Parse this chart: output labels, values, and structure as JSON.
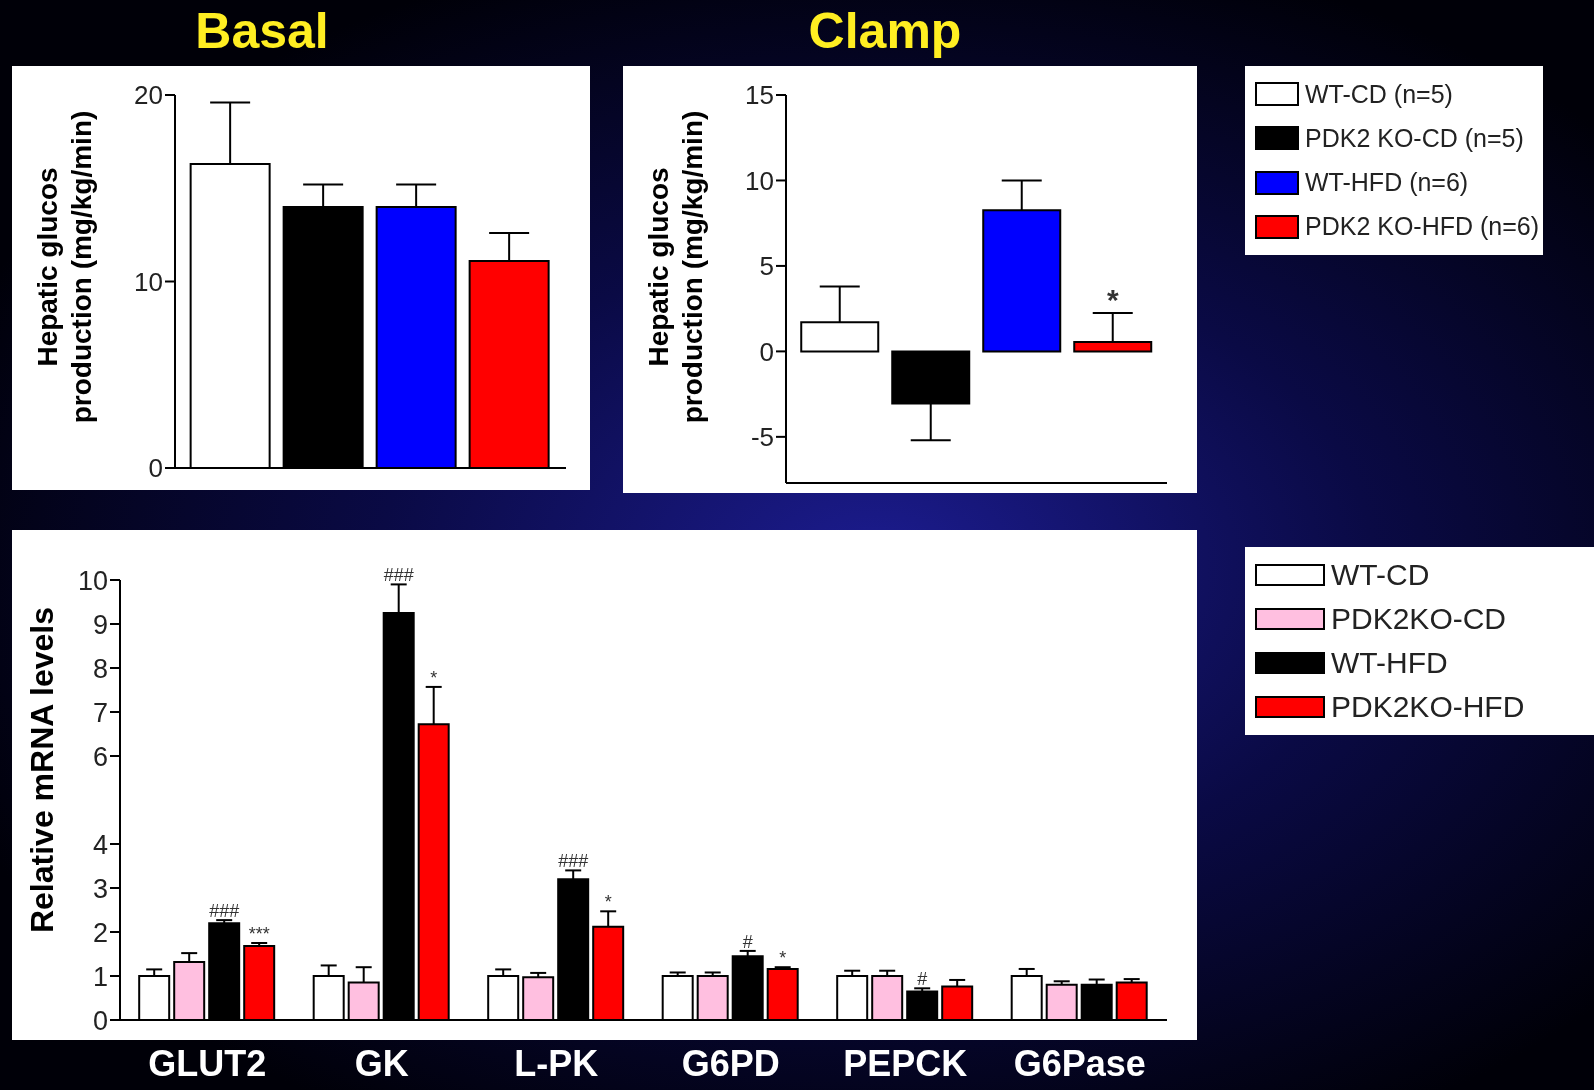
{
  "chart_data": [
    {
      "type": "bar",
      "title": "Basal",
      "ylabel": "Hepatic glucos production (mg/kg/min)",
      "categories": [
        null
      ],
      "ylim": [
        0,
        20
      ],
      "yticks": [
        0,
        10,
        20
      ],
      "series": [
        {
          "color": "#ffffff",
          "values": [
            16.3
          ],
          "errors": [
            3.3
          ]
        },
        {
          "color": "#000000",
          "values": [
            14.0
          ],
          "errors": [
            1.2
          ]
        },
        {
          "color": "#0000ff",
          "values": [
            14.0
          ],
          "errors": [
            1.2
          ]
        },
        {
          "color": "#ff0000",
          "values": [
            11.1
          ],
          "errors": [
            1.5
          ]
        }
      ]
    },
    {
      "type": "bar",
      "title": "Clamp",
      "ylabel": "Hepatic glucos production (mg/kg/min)",
      "categories": [
        null
      ],
      "ylim": [
        -7.7,
        15
      ],
      "yticks": [
        -5,
        0,
        5,
        10,
        15
      ],
      "legend": "right",
      "annotations": [
        {
          "text": "*",
          "y": 2.25
        }
      ],
      "series": [
        {
          "name": "WT-CD (n=5)",
          "color": "#ffffff",
          "values": [
            1.7
          ],
          "errors": [
            2.1
          ]
        },
        {
          "name": "PDK2 KO-CD (n=5)",
          "color": "#000000",
          "values": [
            -3.05
          ],
          "errors": [
            2.15
          ]
        },
        {
          "name": "WT-HFD (n=6)",
          "color": "#0000ff",
          "values": [
            8.25
          ],
          "errors": [
            1.75
          ]
        },
        {
          "name": "PDK2 KO-HFD (n=6)",
          "color": "#ff0000",
          "values": [
            0.55
          ],
          "errors": [
            1.7
          ]
        }
      ]
    },
    {
      "type": "bar",
      "ylabel": "Relative mRNA levels",
      "categories": [
        "GLUT2",
        "GK",
        "L-PK",
        "G6PD",
        "PEPCK",
        "G6Pase"
      ],
      "ylim": [
        0,
        10
      ],
      "yticks": [
        0,
        1,
        2,
        3,
        4,
        6,
        7,
        8,
        9,
        10
      ],
      "legend": "right",
      "annotations": [
        {
          "text": "###",
          "x": "GLUT2",
          "y": 2.27
        },
        {
          "text": "***",
          "x": "GLUT2",
          "y": 1.75
        },
        {
          "text": "###",
          "x": "GK",
          "y": 9.25
        },
        {
          "text": "*",
          "x": "GK",
          "y": 7.57
        },
        {
          "text": "###",
          "x": "L-PK",
          "y": 3.2
        },
        {
          "text": "*",
          "x": "L-PK",
          "y": 2.47
        },
        {
          "text": "#",
          "x": "G6PD",
          "y": 1.45
        },
        {
          "text": "*",
          "x": "G6PD",
          "y": 1.2
        },
        {
          "text": "#",
          "x": "PEPCK",
          "y": 0.72
        }
      ],
      "series": [
        {
          "name": "WT-CD",
          "color": "#ffffff",
          "values": [
            1.0,
            1.0,
            1.0,
            1.0,
            1.0,
            1.0
          ],
          "errors": [
            0.15,
            0.24,
            0.15,
            0.08,
            0.12,
            0.16
          ]
        },
        {
          "name": "PDK2KO-CD",
          "color": "#ffbfe0",
          "values": [
            1.32,
            0.85,
            0.97,
            1.0,
            1.0,
            0.8
          ],
          "errors": [
            0.2,
            0.35,
            0.1,
            0.08,
            0.12,
            0.08
          ]
        },
        {
          "name": "WT-HFD",
          "color": "#000000",
          "values": [
            2.2,
            9.25,
            3.2,
            1.45,
            0.65,
            0.8
          ],
          "errors": [
            0.07,
            0.65,
            0.2,
            0.12,
            0.07,
            0.12
          ]
        },
        {
          "name": "PDK2KO-HFD",
          "color": "#ff0000",
          "values": [
            1.68,
            6.72,
            2.12,
            1.16,
            0.76,
            0.85
          ],
          "errors": [
            0.07,
            0.85,
            0.35,
            0.04,
            0.15,
            0.08
          ]
        }
      ]
    }
  ]
}
